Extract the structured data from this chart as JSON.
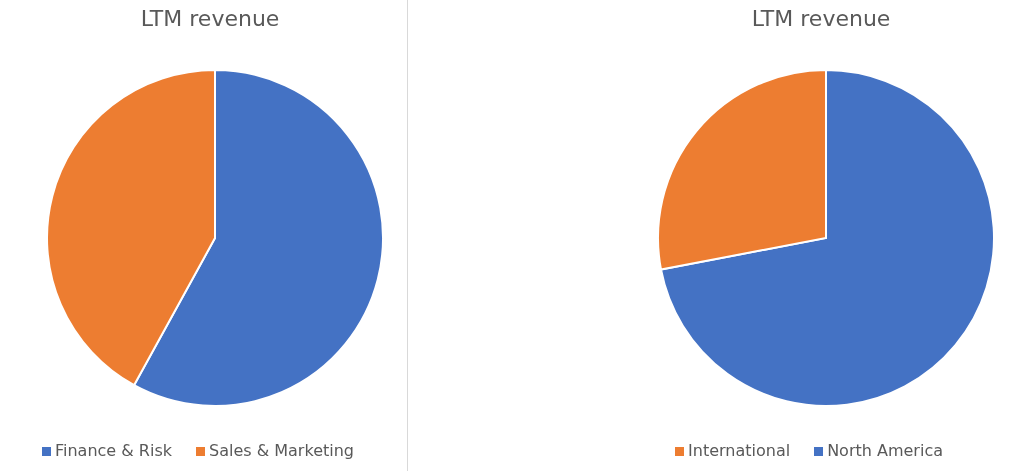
{
  "chart_data": [
    {
      "type": "pie",
      "title": "LTM revenue",
      "categories": [
        "Finance & Risk",
        "Sales & Marketing"
      ],
      "values": [
        58,
        42
      ],
      "colors": [
        "#4472c4",
        "#ed7d31"
      ],
      "legend": "bottom"
    },
    {
      "type": "pie",
      "title": "LTM revenue",
      "categories": [
        "North America",
        "International"
      ],
      "values": [
        72,
        28
      ],
      "colors": [
        "#4472c4",
        "#ed7d31"
      ],
      "legend": "bottom"
    }
  ]
}
